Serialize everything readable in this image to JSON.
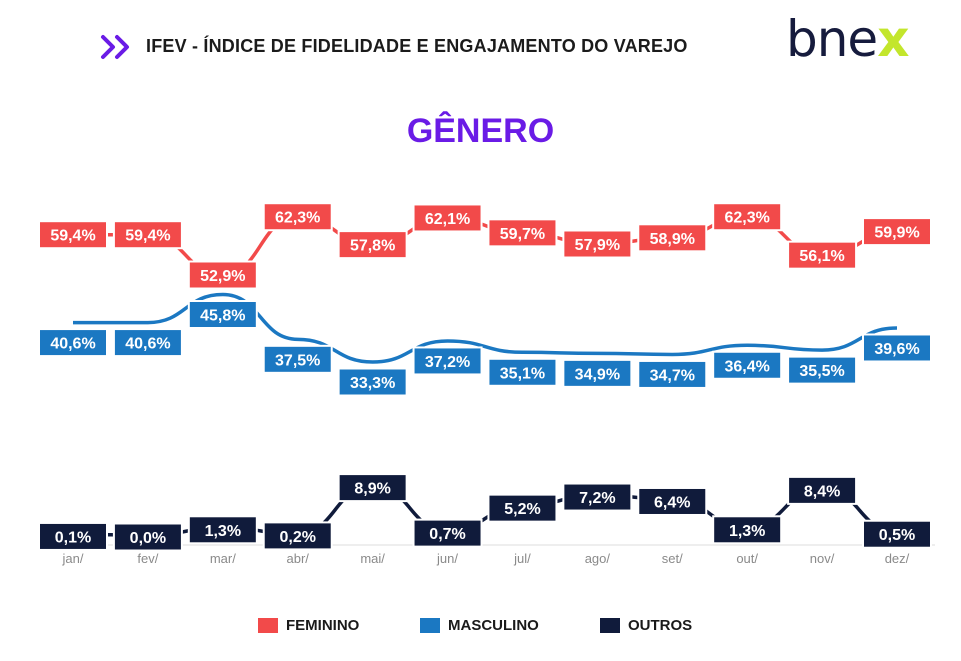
{
  "header": {
    "title": "IFEV - ÍNDICE DE FIDELIDADE E ENGAJAMENTO DO VAREJO"
  },
  "logo": {
    "main": "bne",
    "accent": "x"
  },
  "colors": {
    "feminino": "#f24a4a",
    "masculino": "#1b78c2",
    "outros": "#101b3b",
    "title": "#6a1be6",
    "accent": "#c3e62c"
  },
  "chart_data": {
    "type": "line",
    "title": "GÊNERO",
    "categories": [
      "jan/",
      "fev/",
      "mar/",
      "abr/",
      "mai/",
      "jun/",
      "jul/",
      "ago/",
      "set/",
      "out/",
      "nov/",
      "dez/"
    ],
    "series": [
      {
        "name": "FEMININO",
        "values": [
          59.4,
          59.4,
          52.9,
          62.3,
          57.8,
          62.1,
          59.7,
          57.9,
          58.9,
          62.3,
          56.1,
          59.9
        ],
        "labels": [
          "59,4%",
          "59,4%",
          "52,9%",
          "62,3%",
          "57,8%",
          "62,1%",
          "59,7%",
          "57,9%",
          "58,9%",
          "62,3%",
          "56,1%",
          "59,9%"
        ]
      },
      {
        "name": "MASCULINO",
        "values": [
          40.6,
          40.6,
          45.8,
          37.5,
          33.3,
          37.2,
          35.1,
          34.9,
          34.7,
          36.4,
          35.5,
          39.6
        ],
        "labels": [
          "40,6%",
          "40,6%",
          "45,8%",
          "37,5%",
          "33,3%",
          "37,2%",
          "35,1%",
          "34,9%",
          "34,7%",
          "36,4%",
          "35,5%",
          "39,6%"
        ]
      },
      {
        "name": "OUTROS",
        "values": [
          0.1,
          0.0,
          1.3,
          0.2,
          8.9,
          0.7,
          5.2,
          7.2,
          6.4,
          1.3,
          8.4,
          0.5
        ],
        "labels": [
          "0,1%",
          "0,0%",
          "1,3%",
          "0,2%",
          "8,9%",
          "0,7%",
          "5,2%",
          "7,2%",
          "6,4%",
          "1,3%",
          "8,4%",
          "0,5%"
        ]
      }
    ],
    "grid": false,
    "legend_position": "bottom"
  },
  "legend": [
    {
      "label": "FEMININO",
      "color": "#f24a4a"
    },
    {
      "label": "MASCULINO",
      "color": "#1b78c2"
    },
    {
      "label": "OUTROS",
      "color": "#101b3b"
    }
  ]
}
